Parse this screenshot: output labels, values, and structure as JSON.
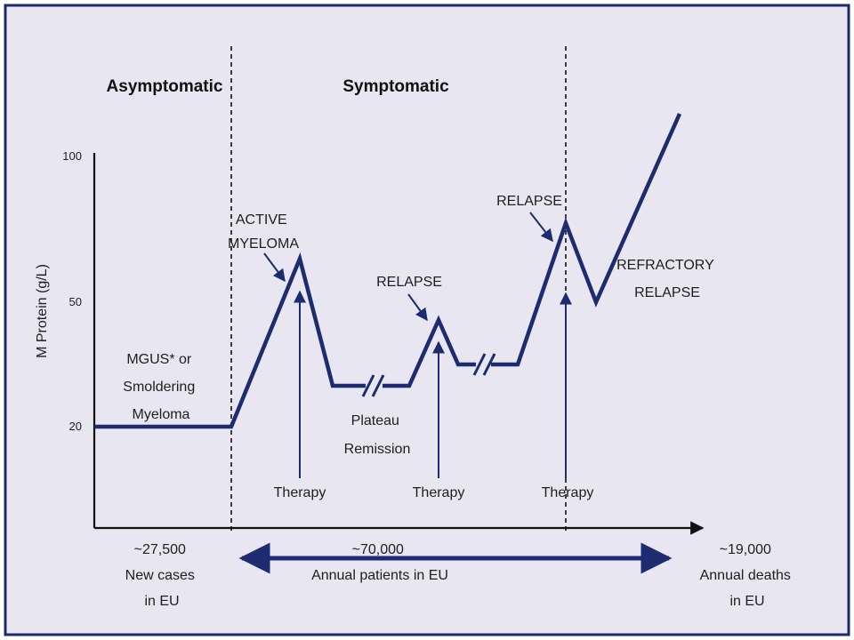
{
  "headers": {
    "asymptomatic": "Asymptomatic",
    "symptomatic": "Symptomatic"
  },
  "y_axis": {
    "label": "M Protein (g/L)",
    "ticks": [
      "100",
      "50",
      "20"
    ]
  },
  "labels": {
    "mgus": [
      "MGUS* or",
      "Smoldering",
      "Myeloma"
    ],
    "active_myeloma": [
      "ACTIVE",
      "MYELOMA"
    ],
    "plateau": [
      "Plateau",
      "Remission"
    ],
    "relapse_1": "RELAPSE",
    "relapse_2": "RELAPSE",
    "refractory": [
      "REFRACTORY",
      "RELAPSE"
    ],
    "therapy": [
      "Therapy",
      "Therapy",
      "Therapy"
    ]
  },
  "footer": {
    "new_cases": [
      "~27,500",
      "New cases",
      "in EU"
    ],
    "annual_patients": [
      "~70,000",
      "Annual patients in EU"
    ],
    "annual_deaths": [
      "~19,000",
      "Annual deaths",
      "in EU"
    ]
  },
  "colors": {
    "line": "#1d2b70",
    "background": "#e7e6f1",
    "border": "#1b2a6b"
  }
}
